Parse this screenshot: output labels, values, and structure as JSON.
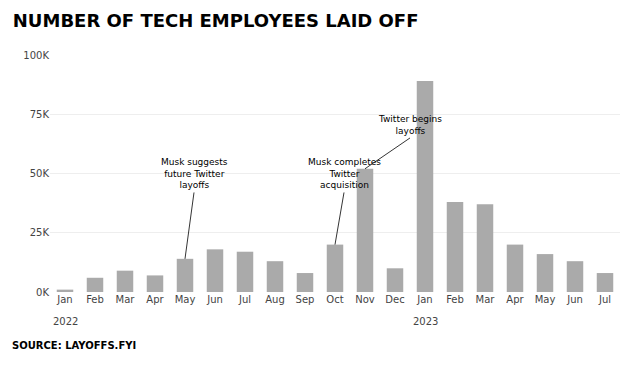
{
  "chart_data": {
    "type": "bar",
    "title": "NUMBER OF TECH EMPLOYEES LAID OFF",
    "source": "SOURCE: LAYOFFS.FYI",
    "categories": [
      "Jan",
      "Feb",
      "Mar",
      "Apr",
      "May",
      "Jun",
      "Jul",
      "Aug",
      "Sep",
      "Oct",
      "Nov",
      "Dec",
      "Jan",
      "Feb",
      "Mar",
      "Apr",
      "May",
      "Jun",
      "Jul"
    ],
    "year_labels": [
      {
        "index": 0,
        "text": "2022"
      },
      {
        "index": 12,
        "text": "2023"
      }
    ],
    "values": [
      1000,
      6000,
      9000,
      7000,
      14000,
      18000,
      17000,
      13000,
      8000,
      20000,
      52000,
      10000,
      89000,
      38000,
      37000,
      20000,
      16000,
      13000,
      8000
    ],
    "color": "#aaaaaa",
    "ylim": [
      0,
      100000
    ],
    "yticks": [
      {
        "value": 0,
        "label": "0K"
      },
      {
        "value": 25000,
        "label": "25K"
      },
      {
        "value": 50000,
        "label": "50K"
      },
      {
        "value": 75000,
        "label": "75K"
      },
      {
        "value": 100000,
        "label": "100K"
      }
    ],
    "grid": true,
    "annotations": [
      {
        "text": "Musk suggests\nfuture Twitter\nlayoffs",
        "index": 4,
        "text_x": 4.3,
        "text_y": 42000
      },
      {
        "text": "Musk completes\nTwitter\nacquisition",
        "index": 9,
        "text_x": 9.3,
        "text_y": 42000
      },
      {
        "text": "Twitter begins\nlayoffs",
        "index": 10,
        "text_x": 11.5,
        "text_y": 65000
      }
    ]
  }
}
